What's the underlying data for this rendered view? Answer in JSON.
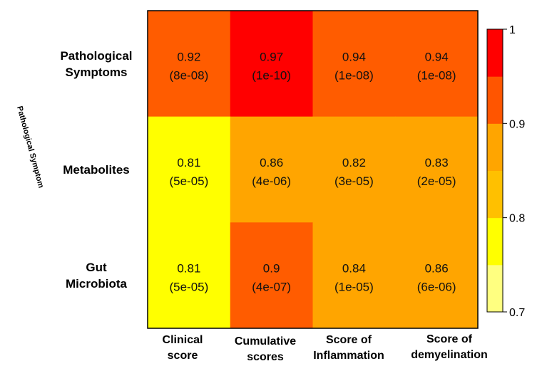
{
  "chart_data": {
    "type": "heatmap",
    "rows": [
      [
        "Pathological",
        "Symptoms"
      ],
      [
        "Metabolites"
      ],
      [
        "Gut",
        "Microbiota"
      ]
    ],
    "columns": [
      [
        "Clinical",
        "score"
      ],
      [
        "Cumulative",
        "scores"
      ],
      [
        "Score of",
        "Inflammation"
      ],
      [
        "Score of",
        "demyelination"
      ]
    ],
    "values": [
      [
        0.92,
        0.97,
        0.94,
        0.94
      ],
      [
        0.81,
        0.86,
        0.82,
        0.83
      ],
      [
        0.81,
        0.9,
        0.84,
        0.86
      ]
    ],
    "value_labels": [
      [
        "0.92",
        "0.97",
        "0.94",
        "0.94"
      ],
      [
        "0.81",
        "0.86",
        "0.82",
        "0.83"
      ],
      [
        "0.81",
        "0.9",
        "0.84",
        "0.86"
      ]
    ],
    "pvalue_labels": [
      [
        "(8e-08)",
        "(1e-10)",
        "(1e-08)",
        "(1e-08)"
      ],
      [
        "(5e-05)",
        "(4e-06)",
        "(3e-05)",
        "(2e-05)"
      ],
      [
        "(5e-05)",
        "(4e-07)",
        "(1e-05)",
        "(6e-06)"
      ]
    ],
    "colorbar": {
      "range": [
        0.7,
        1.0
      ],
      "ticks": [
        1,
        0.9,
        0.8,
        0.7
      ],
      "tick_labels": [
        "1",
        "0.9",
        "0.8",
        "0.7"
      ],
      "bins": [
        {
          "from": 0.7,
          "to": 0.75,
          "color": "#ffff80"
        },
        {
          "from": 0.75,
          "to": 0.8,
          "color": "#ffff00"
        },
        {
          "from": 0.8,
          "to": 0.85,
          "color": "#ffc000"
        },
        {
          "from": 0.85,
          "to": 0.9,
          "color": "#ffa500"
        },
        {
          "from": 0.9,
          "to": 0.95,
          "color": "#ff5500"
        },
        {
          "from": 0.95,
          "to": 1.0,
          "color": "#ff0000"
        }
      ]
    },
    "cell_colors": [
      [
        "#ff5c00",
        "#ff0000",
        "#ff5c00",
        "#ff5c00"
      ],
      [
        "#ffff00",
        "#ffa500",
        "#ffa500",
        "#ffa500"
      ],
      [
        "#ffff00",
        "#ff5c00",
        "#ffa500",
        "#ffa500"
      ]
    ],
    "side_label": "Pathological Symptom"
  }
}
